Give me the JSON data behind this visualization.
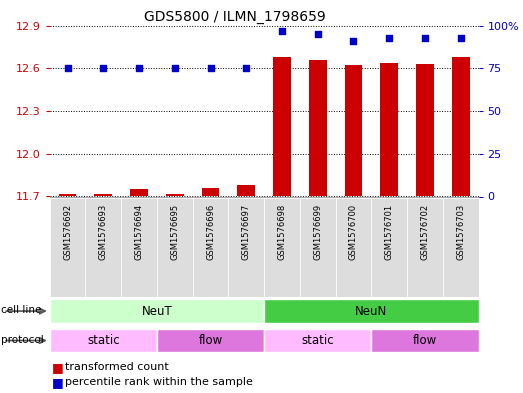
{
  "title": "GDS5800 / ILMN_1798659",
  "samples": [
    "GSM1576692",
    "GSM1576693",
    "GSM1576694",
    "GSM1576695",
    "GSM1576696",
    "GSM1576697",
    "GSM1576698",
    "GSM1576699",
    "GSM1576700",
    "GSM1576701",
    "GSM1576702",
    "GSM1576703"
  ],
  "transformed_count": [
    11.72,
    11.72,
    11.75,
    11.72,
    11.76,
    11.78,
    12.68,
    12.66,
    12.62,
    12.64,
    12.63,
    12.68
  ],
  "percentile_rank": [
    75,
    75,
    75,
    75,
    75,
    75,
    97,
    95,
    91,
    93,
    93,
    93
  ],
  "ylim_left": [
    11.7,
    12.9
  ],
  "ylim_right": [
    0,
    100
  ],
  "yticks_left": [
    11.7,
    12.0,
    12.3,
    12.6,
    12.9
  ],
  "yticks_right": [
    0,
    25,
    50,
    75,
    100
  ],
  "ytick_right_labels": [
    "0",
    "25",
    "50",
    "75",
    "100%"
  ],
  "bar_color": "#cc0000",
  "dot_color": "#0000cc",
  "cell_line_segments": [
    {
      "label": "NeuT",
      "start": 0,
      "end": 6,
      "color": "#ccffcc"
    },
    {
      "label": "NeuN",
      "start": 6,
      "end": 12,
      "color": "#44cc44"
    }
  ],
  "protocol_segments": [
    {
      "label": "static",
      "start": 0,
      "end": 3,
      "color": "#ffbbff"
    },
    {
      "label": "flow",
      "start": 3,
      "end": 6,
      "color": "#dd77dd"
    },
    {
      "label": "static",
      "start": 6,
      "end": 9,
      "color": "#ffbbff"
    },
    {
      "label": "flow",
      "start": 9,
      "end": 12,
      "color": "#dd77dd"
    }
  ],
  "legend_items": [
    {
      "label": "transformed count",
      "color": "#cc0000"
    },
    {
      "label": "percentile rank within the sample",
      "color": "#0000cc"
    }
  ],
  "tick_color_left": "#cc0000",
  "tick_color_right": "#0000cc",
  "bg_color": "#ffffff",
  "bar_width": 0.5,
  "row_label_cell_line": "cell line",
  "row_label_protocol": "protocol",
  "arrow_color": "#555555",
  "title_fontsize": 10,
  "axis_fontsize": 8,
  "sample_fontsize": 6,
  "legend_fontsize": 8
}
